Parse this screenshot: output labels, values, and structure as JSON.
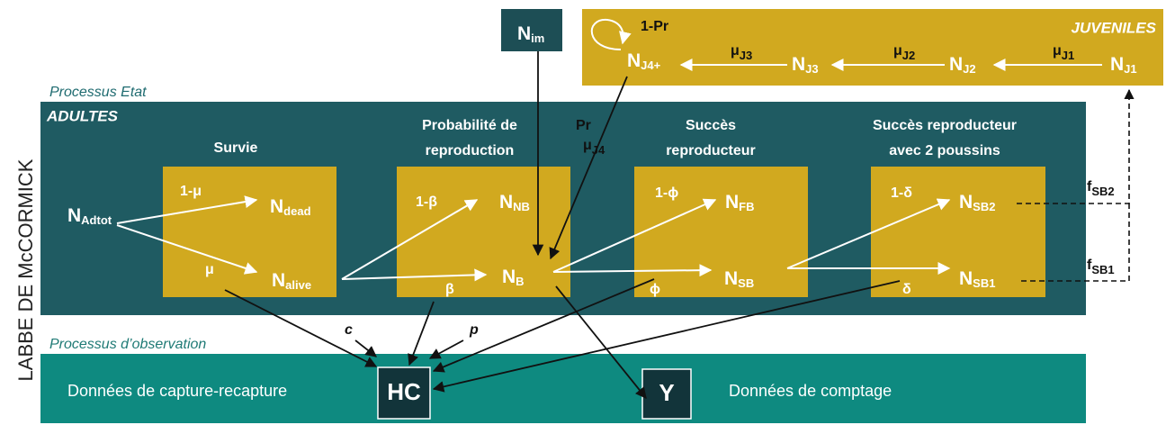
{
  "title_vertical": "LABBE DE McCORMICK",
  "sections": {
    "state_label": "Processus Etat",
    "adults_label": "ADULTES",
    "juveniles_label": "JUVENILES",
    "observation_label": "Processus d’observation"
  },
  "headings": [
    {
      "lines": [
        "Survie"
      ]
    },
    {
      "lines": [
        "Probabilité de",
        "reproduction"
      ]
    },
    {
      "lines": [
        "Succès",
        "reproducteur"
      ]
    },
    {
      "lines": [
        "Succès reproducteur",
        "avec 2 poussins"
      ]
    }
  ],
  "nodes": [
    {
      "main": "N",
      "sub": "Adtot"
    },
    {
      "main": "N",
      "sub": "dead"
    },
    {
      "main": "N",
      "sub": "alive"
    },
    {
      "main": "N",
      "sub": "NB"
    },
    {
      "main": "N",
      "sub": "B"
    },
    {
      "main": "N",
      "sub": "FB"
    },
    {
      "main": "N",
      "sub": "SB"
    },
    {
      "main": "N",
      "sub": "SB2"
    },
    {
      "main": "N",
      "sub": "SB1"
    },
    {
      "main": "N",
      "sub": "J4+"
    },
    {
      "main": "N",
      "sub": "J3"
    },
    {
      "main": "N",
      "sub": "J2"
    },
    {
      "main": "N",
      "sub": "J1"
    },
    {
      "main": "N",
      "sub": "im"
    }
  ],
  "edge_labels": [
    {
      "main": "1-μ"
    },
    {
      "main": "μ"
    },
    {
      "main": "1-β"
    },
    {
      "main": "β"
    },
    {
      "main": "1-ϕ"
    },
    {
      "main": "ϕ"
    },
    {
      "main": "1-δ"
    },
    {
      "main": "δ"
    },
    {
      "main": "Pr"
    },
    {
      "main": "μ",
      "sub": "J4"
    },
    {
      "main": "1-Pr"
    },
    {
      "main": "μ",
      "sub": "J3"
    },
    {
      "main": "μ",
      "sub": "J2"
    },
    {
      "main": "μ",
      "sub": "J1"
    },
    {
      "main": "f",
      "sub": "SB2"
    },
    {
      "main": "f",
      "sub": "SB1"
    },
    {
      "main": "c"
    },
    {
      "main": "p"
    }
  ],
  "data_boxes": [
    "HC",
    "Y"
  ],
  "data_descriptions": [
    "Données de capture-recapture",
    "Données de comptage"
  ]
}
